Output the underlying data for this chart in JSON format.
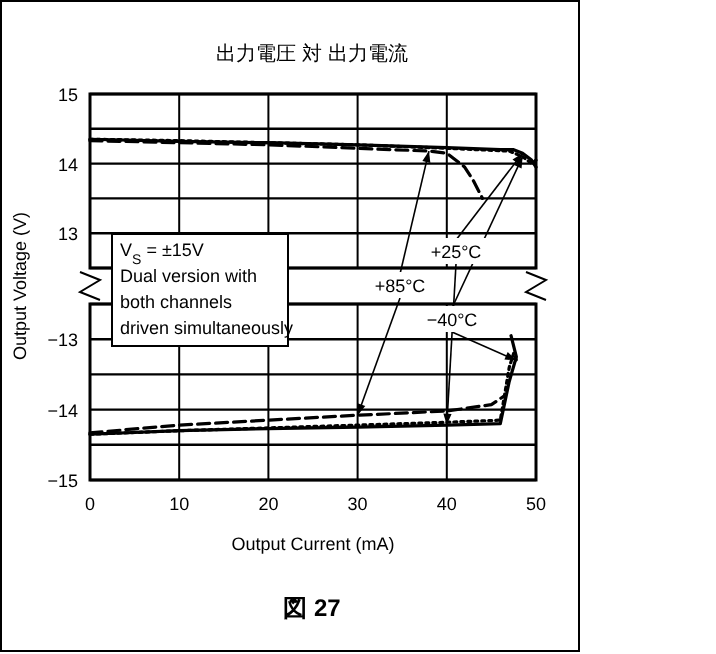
{
  "chart_data": [
    {
      "type": "line",
      "title": "出力電圧 対 出力電流",
      "ylabel": "Output Voltage (V)",
      "xlim": [
        0,
        50
      ],
      "xticks": [
        0,
        10,
        20,
        30,
        40,
        50
      ],
      "ylim": [
        12.5,
        15
      ],
      "yticks": [
        {
          "value": 12.5,
          "label": null
        },
        13,
        {
          "value": 13.5,
          "label": null
        },
        14,
        {
          "value": 14.5,
          "label": null
        },
        15
      ],
      "grid": true,
      "tick_labels": "y",
      "annotations": [
        "V$_{S}$ = ±15V\nDual version with\nboth channels\ndriven simultaneously"
      ],
      "series": [
        {
          "name": "+25°C",
          "color": "#000000",
          "line_style": "solid",
          "x": [
            0,
            10,
            20,
            30,
            40,
            46,
            47.5,
            48.5,
            49.5,
            50
          ],
          "values": [
            14.35,
            14.32,
            14.3,
            14.27,
            14.23,
            14.2,
            14.2,
            14.15,
            14.05,
            13.95
          ]
        },
        {
          "name": "+85°C",
          "color": "#000000",
          "line_style": "dashed",
          "x": [
            0,
            10,
            20,
            30,
            38,
            40,
            42,
            43,
            44
          ],
          "values": [
            14.33,
            14.3,
            14.27,
            14.22,
            14.18,
            14.15,
            13.95,
            13.75,
            13.5
          ]
        },
        {
          "name": "−40°C",
          "color": "#000000",
          "line_style": "dotted",
          "x": [
            0,
            10,
            20,
            30,
            40,
            47,
            48.5,
            49.5,
            50
          ],
          "values": [
            14.35,
            14.33,
            14.3,
            14.27,
            14.22,
            14.18,
            14.1,
            14.0,
            14.05
          ]
        }
      ]
    },
    {
      "type": "line",
      "xlabel": "Output Current (mA)",
      "xlim": [
        0,
        50
      ],
      "xticks": [
        0,
        10,
        20,
        30,
        40,
        50
      ],
      "ylim": [
        -15,
        -12.5
      ],
      "yticks": [
        -15,
        {
          "value": -14.5,
          "label": null
        },
        -14,
        {
          "value": -13.5,
          "label": null
        },
        -13,
        {
          "value": -12.5,
          "label": null
        }
      ],
      "grid": true,
      "annotations": [
        "図 27"
      ],
      "series": [
        {
          "color": "#000000",
          "line_style": "solid",
          "x": [
            0,
            10,
            20,
            30,
            40,
            46,
            47,
            47.8,
            47.2
          ],
          "values": [
            -14.35,
            -14.3,
            -14.27,
            -14.25,
            -14.22,
            -14.2,
            -13.6,
            -13.25,
            -12.95
          ]
        },
        {
          "color": "#000000",
          "line_style": "dashed",
          "x": [
            0,
            10,
            20,
            30,
            40,
            45,
            46.5
          ],
          "values": [
            -14.33,
            -14.22,
            -14.15,
            -14.08,
            -14.02,
            -13.93,
            -13.8
          ]
        },
        {
          "color": "#000000",
          "line_style": "dotted",
          "x": [
            0,
            10,
            20,
            30,
            40,
            46,
            47,
            47.5,
            47.8
          ],
          "values": [
            -14.35,
            -14.3,
            -14.26,
            -14.22,
            -14.18,
            -14.15,
            -13.4,
            -13.2,
            -13.3
          ]
        }
      ]
    }
  ]
}
